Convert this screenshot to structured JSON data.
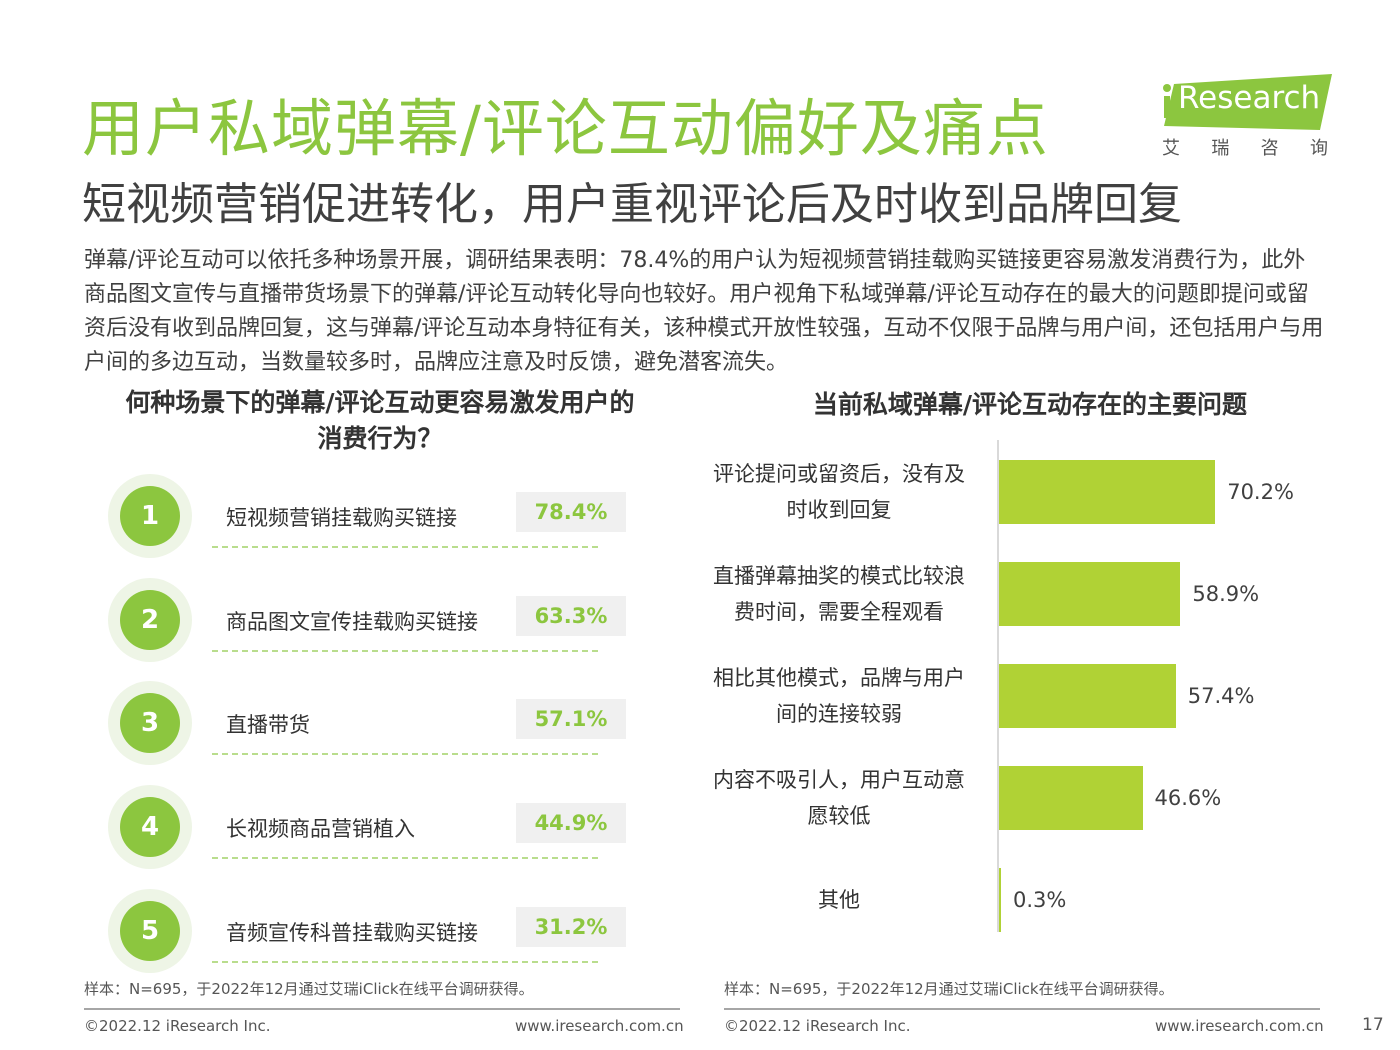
{
  "header": {
    "title": "用户私域弹幕/评论互动偏好及痛点",
    "subtitle": "短视频营销促进转化，用户重视评论后及时收到品牌回复",
    "intro": "弹幕/评论互动可以依托多种场景开展，调研结果表明：78.4%的用户认为短视频营销挂载购买链接更容易激发消费行为，此外商品图文宣传与直播带货场景下的弹幕/评论互动转化导向也较好。用户视角下私域弹幕/评论互动存在的最大的问题即提问或留资后没有收到品牌回复，这与弹幕/评论互动本身特征有关，该种模式开放性较强，互动不仅限于品牌与用户间，还包括用户与用户间的多边互动，当数量较多时，品牌应注意及时反馈，避免潜客流失。"
  },
  "logo": {
    "brand": "Research",
    "cn": [
      "艾",
      "瑞",
      "咨",
      "询"
    ]
  },
  "colors": {
    "accent": "#8cc63f",
    "bar": "#b0d235"
  },
  "chart_data": [
    {
      "type": "table",
      "title": "何种场景下的弹幕/评论互动更容易激发用户的消费行为？",
      "categories": [
        "短视频营销挂载购买链接",
        "商品图文宣传挂载购买链接",
        "直播带货",
        "长视频商品营销植入",
        "音频宣传科普挂载购买链接"
      ],
      "ranks": [
        "1",
        "2",
        "3",
        "4",
        "5"
      ],
      "values": [
        78.4,
        63.3,
        57.1,
        44.9,
        31.2
      ],
      "value_labels": [
        "78.4%",
        "63.3%",
        "57.1%",
        "44.9%",
        "31.2%"
      ]
    },
    {
      "type": "bar",
      "orientation": "horizontal",
      "title": "当前私域弹幕/评论互动存在的主要问题",
      "categories": [
        [
          "评论提问或留资后，没有及",
          "时收到回复"
        ],
        [
          "直播弹幕抽奖的模式比较浪",
          "费时间，需要全程观看"
        ],
        [
          "相比其他模式，品牌与用户",
          "间的连接较弱"
        ],
        [
          "内容不吸引人，用户互动意",
          "愿较低"
        ],
        [
          "其他"
        ]
      ],
      "values": [
        70.2,
        58.9,
        57.4,
        46.6,
        0.3
      ],
      "value_labels": [
        "70.2%",
        "58.9%",
        "57.4%",
        "46.6%",
        "0.3%"
      ],
      "xlim": [
        0,
        100
      ]
    }
  ],
  "footer": {
    "source_left": "样本：N=695，于2022年12月通过艾瑞iClick在线平台调研获得。",
    "source_right": "样本：N=695，于2022年12月通过艾瑞iClick在线平台调研获得。",
    "copyright_left": "©2022.12 iResearch Inc.",
    "url_left": "www.iresearch.com.cn",
    "copyright_right": "©2022.12 iResearch Inc.",
    "url_right": "www.iresearch.com.cn",
    "page_number": "17"
  }
}
